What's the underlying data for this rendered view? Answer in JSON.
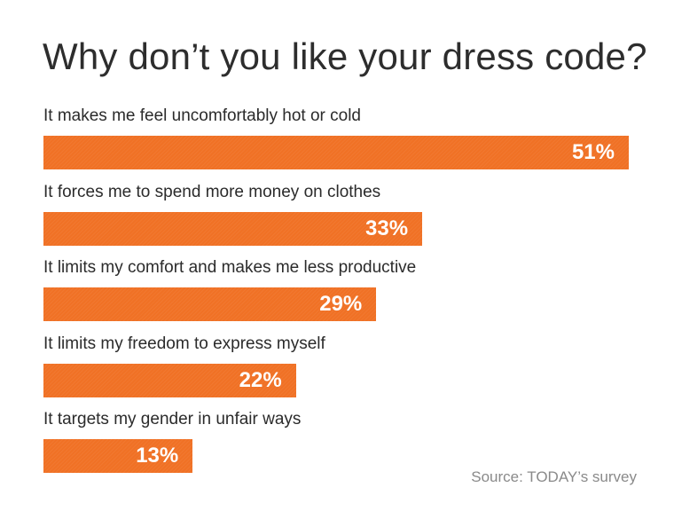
{
  "chart_data": {
    "type": "bar",
    "orientation": "horizontal",
    "title": "Why don’t you like your dress code?",
    "categories": [
      "It makes me feel uncomfortably hot or cold",
      "It forces me to spend more money on clothes",
      "It limits my comfort and makes me less productive",
      "It limits my freedom to express myself",
      "It targets my gender in unfair ways"
    ],
    "values": [
      51,
      33,
      29,
      22,
      13
    ],
    "value_labels": [
      "51%",
      "33%",
      "29%",
      "22%",
      "13%"
    ],
    "unit": "%",
    "xlim": [
      0,
      51
    ],
    "bar_color": "#f07125",
    "grid": false,
    "legend": "none"
  },
  "source": "Source: TODAY’s survey"
}
